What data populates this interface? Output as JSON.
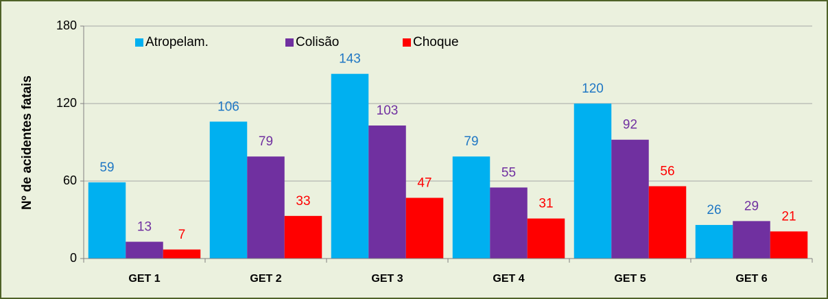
{
  "chart_data": {
    "type": "bar",
    "y_label": "Nº de acidentes  fatais",
    "categories": [
      "GET 1",
      "GET 2",
      "GET 3",
      "GET 4",
      "GET 5",
      "GET 6"
    ],
    "series": [
      {
        "name": "Atropelam.",
        "color": "#00b0f0",
        "label_color": "#1f77c4",
        "values": [
          59,
          106,
          143,
          79,
          120,
          26
        ]
      },
      {
        "name": "Colisão",
        "color": "#7030a0",
        "label_color": "#7030a0",
        "values": [
          13,
          79,
          103,
          55,
          92,
          29
        ]
      },
      {
        "name": "Choque",
        "color": "#ff0000",
        "label_color": "#ff0000",
        "values": [
          7,
          33,
          47,
          31,
          56,
          21
        ]
      }
    ],
    "ylim": [
      0,
      180
    ],
    "yticks": [
      0,
      60,
      120,
      180
    ],
    "grid": true,
    "legend": "top-left"
  }
}
